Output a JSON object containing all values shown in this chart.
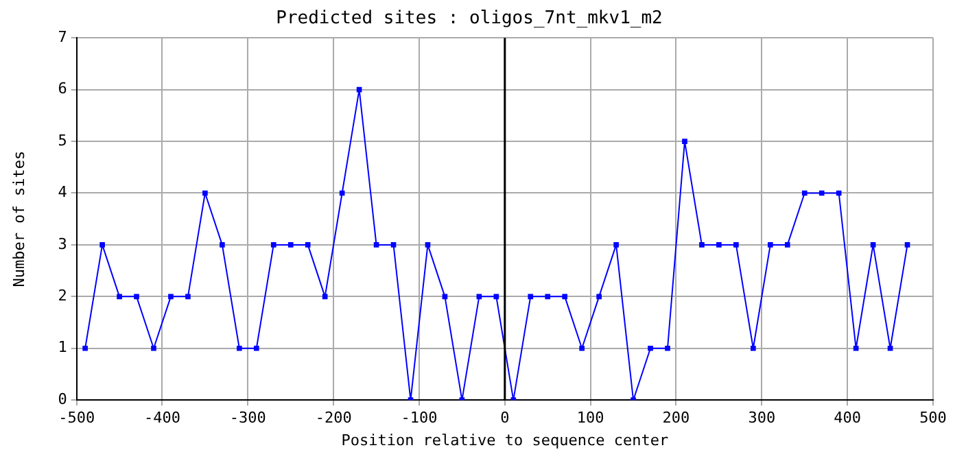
{
  "chart_data": {
    "type": "line",
    "title": "Predicted sites : oligos_7nt_mkv1_m2",
    "xlabel": "Position relative to sequence center",
    "ylabel": "Number of sites",
    "x": [
      -490,
      -470,
      -450,
      -430,
      -410,
      -390,
      -370,
      -350,
      -330,
      -310,
      -290,
      -270,
      -250,
      -230,
      -210,
      -190,
      -170,
      -150,
      -130,
      -110,
      -90,
      -70,
      -50,
      -30,
      -10,
      10,
      30,
      50,
      70,
      90,
      110,
      130,
      150,
      170,
      190,
      210,
      230,
      250,
      270,
      290,
      310,
      330,
      350,
      370,
      390,
      410,
      430,
      450,
      470
    ],
    "series": [
      {
        "color": "#0000ff",
        "values": [
          1,
          3,
          2,
          2,
          1,
          2,
          2,
          4,
          3,
          1,
          1,
          3,
          3,
          3,
          2,
          4,
          6,
          3,
          3,
          0,
          3,
          2,
          0,
          2,
          2,
          0,
          2,
          2,
          2,
          1,
          2,
          3,
          0,
          1,
          1,
          5,
          3,
          3,
          3,
          1,
          3,
          3,
          4,
          4,
          4,
          1,
          3,
          1,
          3
        ]
      }
    ],
    "xlim": [
      -500,
      500
    ],
    "xticks": [
      -500,
      -400,
      -300,
      -200,
      -100,
      0,
      100,
      200,
      300,
      400,
      500
    ],
    "ylim": [
      0,
      7
    ],
    "yticks": [
      0,
      1,
      2,
      3,
      4,
      5,
      6,
      7
    ],
    "ref_lines": [
      {
        "axis": "x",
        "value": 0,
        "color": "#000000"
      }
    ],
    "grid": true,
    "marker": "square",
    "line_style": "solid",
    "legend": false
  }
}
